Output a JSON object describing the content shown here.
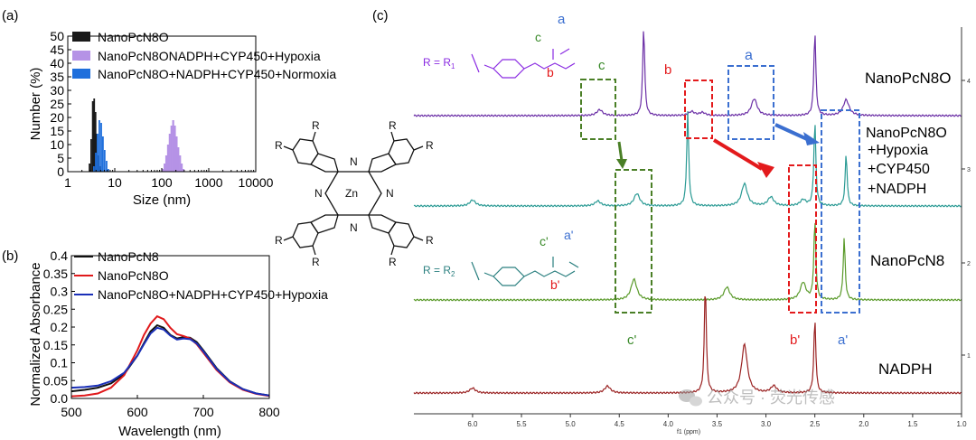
{
  "panel_labels": {
    "a": "(a)",
    "b": "(b)",
    "c": "(c)"
  },
  "chart_data": [
    {
      "id": "a",
      "type": "bar",
      "xlabel": "Size (nm)",
      "ylabel": "Number (%)",
      "x_scale": "log",
      "xlim": [
        1,
        10000
      ],
      "ylim": [
        0,
        50
      ],
      "x_ticks": [
        1,
        10,
        100,
        1000,
        10000
      ],
      "x_tick_labels": [
        "1",
        "10",
        "100",
        "1000",
        "10000"
      ],
      "y_ticks": [
        0,
        5,
        10,
        15,
        20,
        25,
        30,
        35,
        40,
        45,
        50
      ],
      "y_tick_labels": [
        "0",
        "5",
        "10",
        "15",
        "20",
        "25",
        "30",
        "35",
        "40",
        "45",
        "50"
      ],
      "legend_position": "top-left",
      "series": [
        {
          "name": "NanoPcN8O",
          "color": "#1a1a1a",
          "x": [
            2.9,
            3.15,
            3.4,
            3.65,
            3.9,
            4.2,
            4.55,
            4.9
          ],
          "values": [
            3,
            12,
            26,
            27,
            22,
            14,
            6,
            2
          ]
        },
        {
          "name": "NanoPcN8ONADPH+CYP450+Hypoxia",
          "color": "#b592e6",
          "x": [
            105,
            115,
            125,
            136,
            148,
            161,
            175,
            190,
            207,
            225,
            245,
            266,
            290
          ],
          "values": [
            1,
            3,
            6,
            10,
            14,
            17,
            19,
            17,
            13,
            9,
            6,
            3,
            1
          ]
        },
        {
          "name": "NanoPcN8O+NADPH+CYP450+Normoxia",
          "color": "#1f6fdc",
          "x": [
            3.6,
            3.95,
            4.3,
            4.7,
            5.15,
            5.6,
            6.1,
            6.7,
            7.3
          ],
          "values": [
            2,
            7,
            14,
            19,
            18,
            13,
            8,
            4,
            1
          ]
        }
      ]
    },
    {
      "id": "b",
      "type": "line",
      "xlabel": "Wavelength (nm)",
      "ylabel": "Normalized Absorbance",
      "xlim": [
        500,
        800
      ],
      "ylim": [
        0,
        0.4
      ],
      "x_ticks": [
        500,
        600,
        700,
        800
      ],
      "x_tick_labels": [
        "500",
        "600",
        "700",
        "800"
      ],
      "y_ticks": [
        0.0,
        0.05,
        0.1,
        0.15,
        0.2,
        0.25,
        0.3,
        0.35,
        0.4
      ],
      "y_tick_labels": [
        "0.0",
        "0.05",
        "0.1",
        "0.15",
        "0.2",
        "0.25",
        "0.3",
        "0.35",
        "0.4"
      ],
      "legend_position": "top",
      "series": [
        {
          "name": "NanoPcN8",
          "color": "#111111",
          "x": [
            500,
            520,
            540,
            560,
            580,
            600,
            610,
            620,
            630,
            640,
            650,
            660,
            670,
            680,
            690,
            700,
            720,
            740,
            760,
            780,
            800
          ],
          "values": [
            0.02,
            0.024,
            0.03,
            0.042,
            0.068,
            0.12,
            0.155,
            0.188,
            0.205,
            0.198,
            0.178,
            0.168,
            0.172,
            0.17,
            0.158,
            0.135,
            0.085,
            0.048,
            0.026,
            0.014,
            0.008
          ]
        },
        {
          "name": "NanoPcN8O",
          "color": "#e0191b",
          "x": [
            500,
            520,
            540,
            560,
            580,
            600,
            610,
            620,
            630,
            640,
            650,
            660,
            670,
            680,
            690,
            700,
            720,
            740,
            760,
            780,
            800
          ],
          "values": [
            0.006,
            0.008,
            0.014,
            0.03,
            0.065,
            0.135,
            0.178,
            0.21,
            0.23,
            0.222,
            0.198,
            0.18,
            0.175,
            0.168,
            0.152,
            0.128,
            0.08,
            0.045,
            0.024,
            0.013,
            0.007
          ]
        },
        {
          "name": "NanoPcN8O+NADPH+CYP450+Hypoxia",
          "color": "#1a2fb8",
          "x": [
            500,
            520,
            540,
            560,
            580,
            600,
            610,
            620,
            630,
            640,
            650,
            660,
            670,
            680,
            690,
            700,
            720,
            740,
            760,
            780,
            800
          ],
          "values": [
            0.03,
            0.032,
            0.036,
            0.048,
            0.072,
            0.12,
            0.152,
            0.182,
            0.198,
            0.193,
            0.176,
            0.165,
            0.168,
            0.166,
            0.154,
            0.132,
            0.083,
            0.047,
            0.026,
            0.014,
            0.008
          ]
        }
      ]
    },
    {
      "id": "c",
      "type": "line",
      "xlabel": "f1 (ppm)",
      "x_reversed": true,
      "xlim": [
        6.6,
        1.0
      ],
      "x_ticks": [
        6.0,
        5.5,
        5.0,
        4.5,
        4.0,
        3.5,
        3.0,
        2.5,
        2.0,
        1.5,
        1.0
      ],
      "x_tick_labels": [
        "6.0",
        "5.5",
        "5.0",
        "4.5",
        "4.0",
        "3.5",
        "3.0",
        "2.5",
        "2.0",
        "1.5",
        "1.0"
      ],
      "trace_index_labels": [
        "4",
        "3",
        "2",
        "1"
      ],
      "series": [
        {
          "name": "NanoPcN8O",
          "color": "#6b2fa6",
          "peaks": [
            [
              4.7,
              0.12
            ],
            [
              4.25,
              1.8
            ],
            [
              3.76,
              0.08
            ],
            [
              3.65,
              0.06
            ],
            [
              3.12,
              0.34
            ],
            [
              2.5,
              1.7
            ],
            [
              2.18,
              0.32
            ]
          ]
        },
        {
          "name": "NanoPcN8O +Hypoxia +CYP450 +NADPH",
          "color": "#2a9a94",
          "peaks": [
            [
              6.0,
              0.12
            ],
            [
              4.72,
              0.1
            ],
            [
              4.32,
              0.25
            ],
            [
              3.8,
              1.9
            ],
            [
              3.22,
              0.45
            ],
            [
              2.95,
              0.18
            ],
            [
              2.62,
              0.12
            ],
            [
              2.5,
              1.7
            ],
            [
              2.18,
              1.05
            ]
          ]
        },
        {
          "name": "NanoPcN8",
          "color": "#5a9a2a",
          "peaks": [
            [
              4.35,
              0.42
            ],
            [
              3.4,
              0.26
            ],
            [
              2.62,
              0.35
            ],
            [
              2.5,
              1.6
            ],
            [
              2.2,
              1.25
            ]
          ]
        },
        {
          "name": "NADPH",
          "color": "#9a2222",
          "peaks": [
            [
              6.0,
              0.1
            ],
            [
              4.62,
              0.14
            ],
            [
              3.62,
              2.2
            ],
            [
              3.22,
              0.98
            ],
            [
              2.92,
              0.14
            ],
            [
              2.5,
              1.5
            ]
          ]
        }
      ]
    }
  ],
  "annotations": {
    "r1_label": "R = R",
    "r1_sub": "1",
    "r2_label": "R = R",
    "r2_sub": "2",
    "peak_labels": {
      "top_a": "a",
      "top_c": "c",
      "top_b": "b",
      "box_c": "c",
      "box_b": "b",
      "box_a": "a",
      "prime_c": "c'",
      "prime_a": "a'",
      "prime_b": "b'",
      "bottom_c": "c'",
      "bottom_b": "b'",
      "bottom_a": "a'"
    },
    "structure_letters": {
      "r": "R",
      "n": "N",
      "zn": "Zn"
    },
    "watermark": "公众号 · 荧光传感"
  }
}
